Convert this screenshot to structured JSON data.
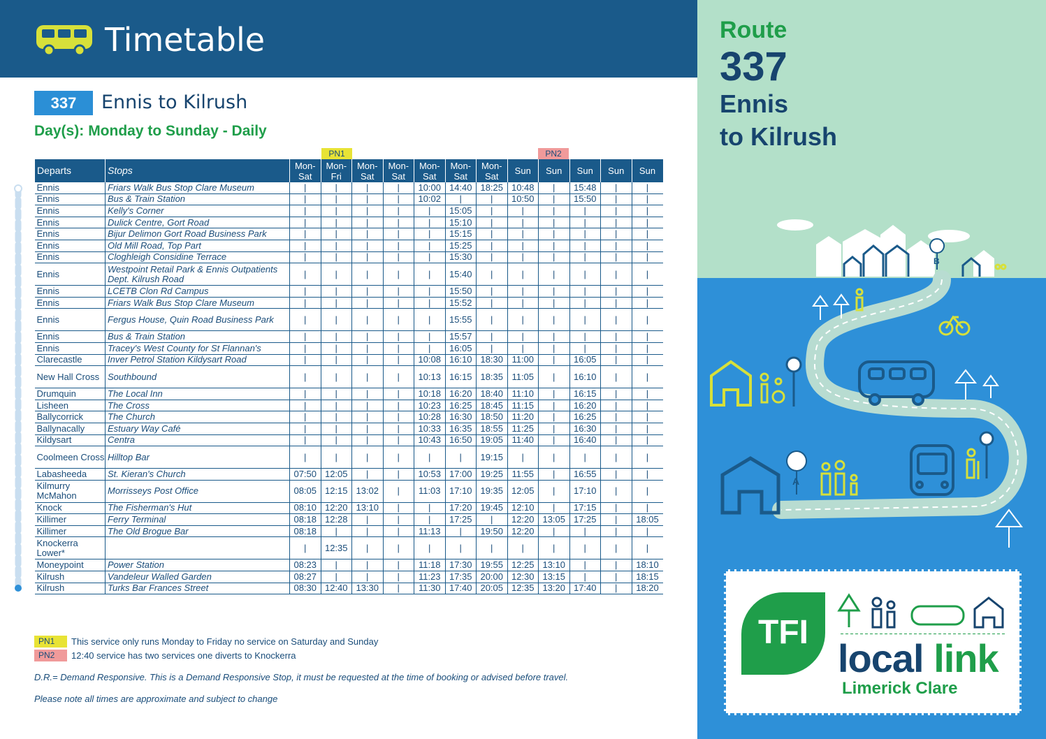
{
  "header": {
    "title": "Timetable"
  },
  "route": {
    "number": "337",
    "title": "Ennis to Kilrush",
    "days_label": "Day(s):",
    "days_value": "Monday to Sunday - Daily"
  },
  "pn_labels": {
    "pn1": "PN1",
    "pn2": "PN2"
  },
  "table": {
    "col_departs": "Departs",
    "col_stops": "Stops",
    "day_cols": [
      "Mon-\nSat",
      "Mon-\nFri",
      "Mon-\nSat",
      "Mon-\nSat",
      "Mon-\nSat",
      "Mon-\nSat",
      "Mon-\nSat",
      "Sun",
      "Sun",
      "Sun",
      "Sun",
      "Sun"
    ],
    "rows": [
      {
        "dep": "Ennis",
        "stop": "Friars Walk Bus Stop Clare Museum",
        "times": [
          "|",
          "|",
          "|",
          "|",
          "10:00",
          "14:40",
          "18:25",
          "10:48",
          "|",
          "15:48",
          "|",
          "|"
        ]
      },
      {
        "dep": "Ennis",
        "stop": "Bus & Train Station",
        "times": [
          "|",
          "|",
          "|",
          "|",
          "10:02",
          "|",
          "|",
          "10:50",
          "|",
          "15:50",
          "|",
          "|"
        ]
      },
      {
        "dep": "Ennis",
        "stop": "Kelly's Corner",
        "times": [
          "|",
          "|",
          "|",
          "|",
          "|",
          "15:05",
          "|",
          "|",
          "|",
          "|",
          "|",
          "|"
        ]
      },
      {
        "dep": "Ennis",
        "stop": "Dulick Centre, Gort Road",
        "times": [
          "|",
          "|",
          "|",
          "|",
          "|",
          "15:10",
          "|",
          "|",
          "|",
          "|",
          "|",
          "|"
        ]
      },
      {
        "dep": "Ennis",
        "stop": "Bijur Delimon Gort Road Business Park",
        "times": [
          "|",
          "|",
          "|",
          "|",
          "|",
          "15:15",
          "|",
          "|",
          "|",
          "|",
          "|",
          "|"
        ]
      },
      {
        "dep": "Ennis",
        "stop": "Old Mill Road, Top Part",
        "times": [
          "|",
          "|",
          "|",
          "|",
          "|",
          "15:25",
          "|",
          "|",
          "|",
          "|",
          "|",
          "|"
        ]
      },
      {
        "dep": "Ennis",
        "stop": "Cloghleigh Considine Terrace",
        "times": [
          "|",
          "|",
          "|",
          "|",
          "|",
          "15:30",
          "|",
          "|",
          "|",
          "|",
          "|",
          "|"
        ]
      },
      {
        "dep": "Ennis",
        "stop": "Westpoint Retail Park & Ennis Outpatients Dept. Kilrush Road",
        "tall": true,
        "times": [
          "|",
          "|",
          "|",
          "|",
          "|",
          "15:40",
          "|",
          "|",
          "|",
          "|",
          "|",
          "|"
        ]
      },
      {
        "dep": "Ennis",
        "stop": "LCETB Clon Rd Campus",
        "times": [
          "|",
          "|",
          "|",
          "|",
          "|",
          "15:50",
          "|",
          "|",
          "|",
          "|",
          "|",
          "|"
        ]
      },
      {
        "dep": "Ennis",
        "stop": "Friars Walk Bus Stop Clare Museum",
        "times": [
          "|",
          "|",
          "|",
          "|",
          "|",
          "15:52",
          "|",
          "|",
          "|",
          "|",
          "|",
          "|"
        ]
      },
      {
        "dep": "Ennis",
        "stop": "Fergus House, Quin Road Business Park",
        "tall": true,
        "times": [
          "|",
          "|",
          "|",
          "|",
          "|",
          "15:55",
          "|",
          "|",
          "|",
          "|",
          "|",
          "|"
        ]
      },
      {
        "dep": "Ennis",
        "stop": "Bus & Train Station",
        "times": [
          "|",
          "|",
          "|",
          "|",
          "|",
          "15:57",
          "|",
          "|",
          "|",
          "|",
          "|",
          "|"
        ]
      },
      {
        "dep": "Ennis",
        "stop": "Tracey's West County for St Flannan's",
        "times": [
          "|",
          "|",
          "|",
          "|",
          "|",
          "16:05",
          "|",
          "|",
          "|",
          "|",
          "|",
          "|"
        ]
      },
      {
        "dep": "Clarecastle",
        "stop": "Inver Petrol Station Kildysart Road",
        "times": [
          "|",
          "|",
          "|",
          "|",
          "10:08",
          "16:10",
          "18:30",
          "11:00",
          "|",
          "16:05",
          "|",
          "|"
        ]
      },
      {
        "dep": "New Hall Cross",
        "stop": "Southbound",
        "tall": true,
        "times": [
          "|",
          "|",
          "|",
          "|",
          "10:13",
          "16:15",
          "18:35",
          "11:05",
          "|",
          "16:10",
          "|",
          "|"
        ]
      },
      {
        "dep": "Drumquin",
        "stop": "The Local Inn",
        "times": [
          "|",
          "|",
          "|",
          "|",
          "10:18",
          "16:20",
          "18:40",
          "11:10",
          "|",
          "16:15",
          "|",
          "|"
        ]
      },
      {
        "dep": "Lisheen",
        "stop": "The Cross",
        "times": [
          "|",
          "|",
          "|",
          "|",
          "10:23",
          "16:25",
          "18:45",
          "11:15",
          "|",
          "16:20",
          "|",
          "|"
        ]
      },
      {
        "dep": "Ballycorrick",
        "stop": "The Church",
        "times": [
          "|",
          "|",
          "|",
          "|",
          "10:28",
          "16:30",
          "18:50",
          "11:20",
          "|",
          "16:25",
          "|",
          "|"
        ]
      },
      {
        "dep": "Ballynacally",
        "stop": "Estuary Way Café",
        "times": [
          "|",
          "|",
          "|",
          "|",
          "10:33",
          "16:35",
          "18:55",
          "11:25",
          "|",
          "16:30",
          "|",
          "|"
        ]
      },
      {
        "dep": "Kildysart",
        "stop": "Centra",
        "times": [
          "|",
          "|",
          "|",
          "|",
          "10:43",
          "16:50",
          "19:05",
          "11:40",
          "|",
          "16:40",
          "|",
          "|"
        ]
      },
      {
        "dep": "Coolmeen Cross",
        "stop": "Hilltop Bar",
        "tall": true,
        "times": [
          "|",
          "|",
          "|",
          "|",
          "|",
          "|",
          "19:15",
          "|",
          "|",
          "|",
          "|",
          "|"
        ]
      },
      {
        "dep": "Labasheeda",
        "stop": "St. Kieran's  Church",
        "times": [
          "07:50",
          "12:05",
          "|",
          "|",
          "10:53",
          "17:00",
          "19:25",
          "11:55",
          "|",
          "16:55",
          "|",
          "|"
        ]
      },
      {
        "dep": "Kilmurry McMahon",
        "stop": "Morrisseys Post Office",
        "tall": true,
        "times": [
          "08:05",
          "12:15",
          "13:02",
          "|",
          "11:03",
          "17:10",
          "19:35",
          "12:05",
          "|",
          "17:10",
          "|",
          "|"
        ]
      },
      {
        "dep": "Knock",
        "stop": "The Fisherman's Hut",
        "times": [
          "08:10",
          "12:20",
          "13:10",
          "|",
          "|",
          "17:20",
          "19:45",
          "12:10",
          "|",
          "17:15",
          "|",
          "|"
        ]
      },
      {
        "dep": "Killimer",
        "stop": "Ferry Terminal",
        "times": [
          "08:18",
          "12:28",
          "|",
          "|",
          "|",
          "17:25",
          "|",
          "12:20",
          "13:05",
          "17:25",
          "|",
          "18:05"
        ]
      },
      {
        "dep": "Killimer",
        "stop": "The Old Brogue Bar",
        "times": [
          "08:18",
          "|",
          "|",
          "|",
          "11:13",
          "|",
          "19:50",
          "12:20",
          "|",
          "|",
          "|",
          "|"
        ]
      },
      {
        "dep": "Knockerra Lower*",
        "stop": "",
        "tall": true,
        "times": [
          "|",
          "12:35",
          "|",
          "|",
          "|",
          "|",
          "|",
          "|",
          "|",
          "|",
          "|",
          "|"
        ]
      },
      {
        "dep": "Moneypoint",
        "stop": "Power Station",
        "times": [
          "08:23",
          "|",
          "|",
          "|",
          "11:18",
          "17:30",
          "19:55",
          "12:25",
          "13:10",
          "|",
          "|",
          "18:10"
        ]
      },
      {
        "dep": "Kilrush",
        "stop": "Vandeleur Walled Garden",
        "times": [
          "08:27",
          "|",
          "|",
          "|",
          "11:23",
          "17:35",
          "20:00",
          "12:30",
          "13:15",
          "|",
          "|",
          "18:15"
        ]
      },
      {
        "dep": "Kilrush",
        "stop": "Turks Bar Frances Street",
        "times": [
          "08:30",
          "12:40",
          "13:30",
          "|",
          "11:30",
          "17:40",
          "20:05",
          "12:35",
          "13:20",
          "17:40",
          "|",
          "18:20"
        ]
      }
    ]
  },
  "notes": {
    "pn1_key": "PN1",
    "pn1_text": "This service only runs Monday to Friday no service on Saturday and Sunday",
    "pn2_key": "PN2",
    "pn2_text": "12:40 service has two services one diverts to Knockerra",
    "dr_text": "D.R.= Demand Responsive. This is a Demand Responsive Stop, it must be requested at the time of booking or advised before travel.",
    "approx_text": "Please note all times are approximate and subject to change"
  },
  "panel": {
    "route_label": "Route",
    "route_number": "337",
    "from": "Ennis",
    "to": "to Kilrush"
  },
  "logo": {
    "tfi": "TFI",
    "local": "local",
    "link": "link",
    "region": "Limerick Clare"
  },
  "colors": {
    "navy": "#1a5a8a",
    "green": "#1f9e4a",
    "light_green": "#b3e0c9",
    "blue": "#2e90d8",
    "yellow": "#e8e335",
    "pink": "#f09a9a"
  },
  "icons": [
    "bus-icon",
    "house-icon",
    "tree-icon",
    "person-icon",
    "bicycle-icon",
    "bus-stop-icon",
    "map-pin-icon"
  ]
}
